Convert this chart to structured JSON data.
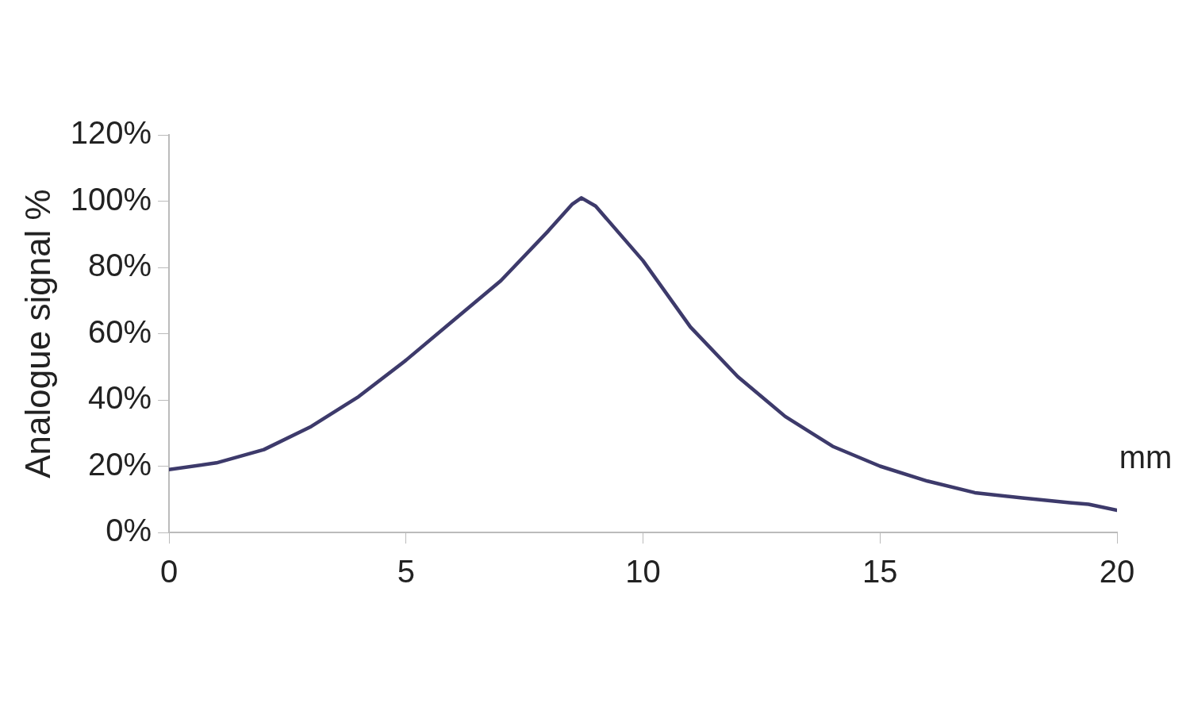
{
  "chart_data": {
    "type": "line",
    "xlabel": "mm",
    "ylabel": "Analogue signal %",
    "x": [
      0,
      1,
      2,
      3,
      4,
      5,
      6,
      7,
      8,
      8.5,
      8.7,
      9,
      10,
      11,
      12,
      13,
      14,
      15,
      16,
      17,
      18,
      19,
      19.4,
      20
    ],
    "series": [
      {
        "color": "#3d3a6b",
        "values": [
          19,
          21,
          25,
          32,
          41,
          52,
          64,
          76,
          91,
          99,
          101,
          98.5,
          82,
          62,
          47,
          35,
          26,
          20,
          15.5,
          12,
          10.4,
          9,
          8.5,
          6.7
        ]
      }
    ],
    "xlim": [
      0,
      20
    ],
    "xticks": [
      0,
      5,
      10,
      15,
      20
    ],
    "ylim": [
      0,
      120
    ],
    "yticks": [
      {
        "value": 0,
        "label": "0%"
      },
      {
        "value": 20,
        "label": "20%"
      },
      {
        "value": 40,
        "label": "40%"
      },
      {
        "value": 60,
        "label": "60%"
      },
      {
        "value": 80,
        "label": "80%"
      },
      {
        "value": 100,
        "label": "100%"
      },
      {
        "value": 120,
        "label": "120%"
      }
    ],
    "grid": false,
    "legend": false,
    "marker": "none",
    "line_style": "solid"
  }
}
